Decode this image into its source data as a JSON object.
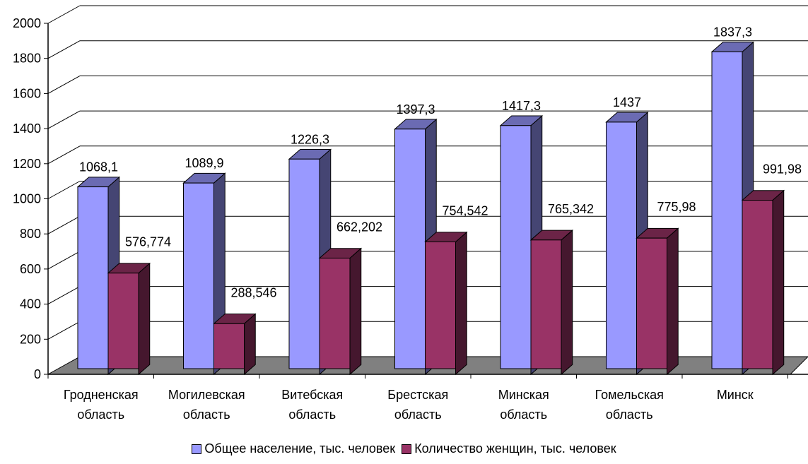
{
  "chart_data": {
    "type": "bar",
    "categories": [
      "Гродненская\nобласть",
      "Могилевская\nобласть",
      "Витебская\nобласть",
      "Брестская\nобласть",
      "Минская\nобласть",
      "Гомельская\nобласть",
      "Минск"
    ],
    "series": [
      {
        "name": "Общее население, тыс. человек",
        "values": [
          1068.1,
          1089.9,
          1226.3,
          1397.3,
          1417.3,
          1437,
          1837.3
        ],
        "labels": [
          "1068,1",
          "1089,9",
          "1226,3",
          "1397,3",
          "1417,3",
          "1437",
          "1837,3"
        ],
        "color": "#9999ff"
      },
      {
        "name": "Количество женщин, тыс. человек",
        "values": [
          576.774,
          288.546,
          662.202,
          754.542,
          765.342,
          775.98,
          991.98
        ],
        "labels": [
          "576,774",
          "288,546",
          "662,202",
          "754,542",
          "765,342",
          "775,98",
          "991,98"
        ],
        "color": "#993366"
      }
    ],
    "ylim": [
      0,
      2000
    ],
    "yticks": [
      "0",
      "200",
      "400",
      "600",
      "800",
      "1000",
      "1200",
      "1400",
      "1600",
      "1800",
      "2000"
    ],
    "grid": true,
    "legend": "bottom",
    "colors": {
      "floor": "#808080",
      "grid": "#000000"
    }
  }
}
